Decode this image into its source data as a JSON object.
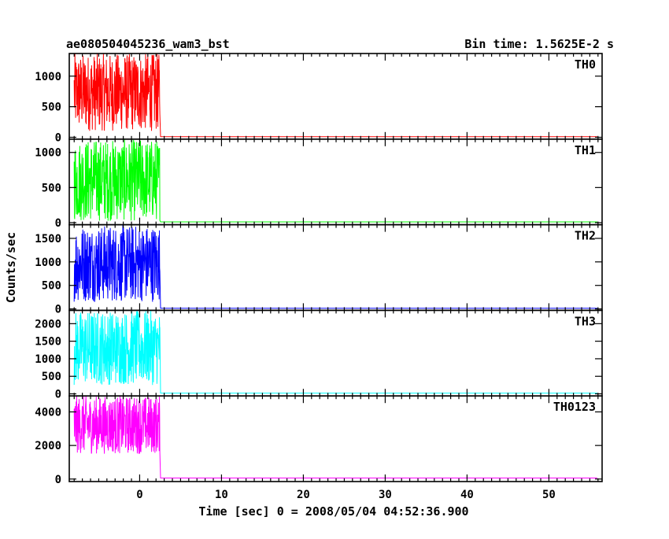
{
  "chart_data": {
    "type": "line",
    "title": "ae080504045236_wam3_bst",
    "subtitle": "Bin time: 1.5625E-2 s",
    "xlabel": "Time [sec] 0 = 2008/05/04 04:52:36.900",
    "ylabel": "Counts/sec",
    "xlim": [
      -8.6,
      56.5
    ],
    "x_ticks": [
      0,
      10,
      20,
      30,
      40,
      50
    ],
    "x_tick_labels": [
      "0",
      "10",
      "20",
      "30",
      "40",
      "50"
    ],
    "burst_window": [
      -8.0,
      2.5
    ],
    "panels": [
      {
        "name": "TH0",
        "color": "#ff0000",
        "ylim": [
          -30,
          1370
        ],
        "y_ticks": [
          0,
          500,
          1000
        ],
        "y_tick_labels": [
          "0",
          "500",
          "1000"
        ],
        "burst_level": [
          100,
          1370
        ],
        "baseline": 10
      },
      {
        "name": "TH1",
        "color": "#00ff00",
        "ylim": [
          -30,
          1190
        ],
        "y_ticks": [
          0,
          500,
          1000
        ],
        "y_tick_labels": [
          "0",
          "500",
          "1000"
        ],
        "burst_level": [
          20,
          1190
        ],
        "baseline": 10
      },
      {
        "name": "TH2",
        "color": "#0000ff",
        "ylim": [
          -30,
          1790
        ],
        "y_ticks": [
          0,
          500,
          1000,
          1500
        ],
        "y_tick_labels": [
          "0",
          "500",
          "1000",
          "1500"
        ],
        "burst_level": [
          150,
          1790
        ],
        "baseline": 15
      },
      {
        "name": "TH3",
        "color": "#00ffff",
        "ylim": [
          -60,
          2380
        ],
        "y_ticks": [
          0,
          500,
          1000,
          1500,
          2000
        ],
        "y_tick_labels": [
          "0",
          "500",
          "1000",
          "1500",
          "2000"
        ],
        "burst_level": [
          250,
          2380
        ],
        "baseline": 20
      },
      {
        "name": "TH0123",
        "color": "#ff00ff",
        "ylim": [
          -150,
          4950
        ],
        "y_ticks": [
          0,
          2000,
          4000
        ],
        "y_tick_labels": [
          "0",
          "2000",
          "4000"
        ],
        "burst_level": [
          1500,
          4950
        ],
        "baseline": 60
      }
    ]
  }
}
